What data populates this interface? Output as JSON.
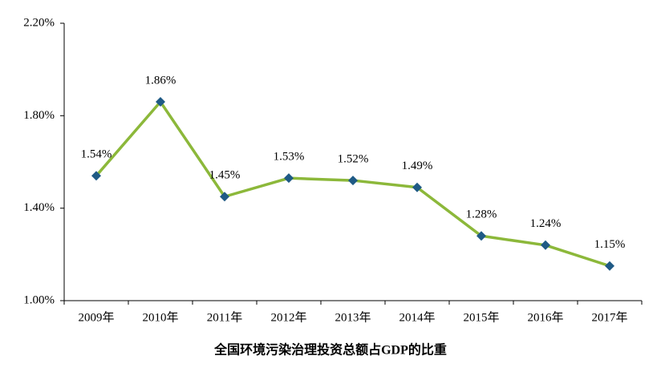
{
  "chart_data": {
    "type": "line",
    "x_label": "全国环境污染治理投资总额占GDP的比重",
    "categories": [
      "2009年",
      "2010年",
      "2011年",
      "2012年",
      "2013年",
      "2014年",
      "2015年",
      "2016年",
      "2017年"
    ],
    "values": [
      1.54,
      1.86,
      1.45,
      1.53,
      1.52,
      1.49,
      1.28,
      1.24,
      1.15
    ],
    "value_labels": [
      "1.54%",
      "1.86%",
      "1.45%",
      "1.53%",
      "1.52%",
      "1.49%",
      "1.28%",
      "1.24%",
      "1.15%"
    ],
    "color": "#8cb83a",
    "marker_color": "#1f5a85",
    "ylim": [
      1.0,
      2.2
    ],
    "yticks": [
      {
        "value": 1.0,
        "label": "1.00%"
      },
      {
        "value": 1.4,
        "label": "1.40%"
      },
      {
        "value": 1.8,
        "label": "1.80%"
      },
      {
        "value": 2.2,
        "label": "2.20%"
      }
    ],
    "grid": false
  }
}
